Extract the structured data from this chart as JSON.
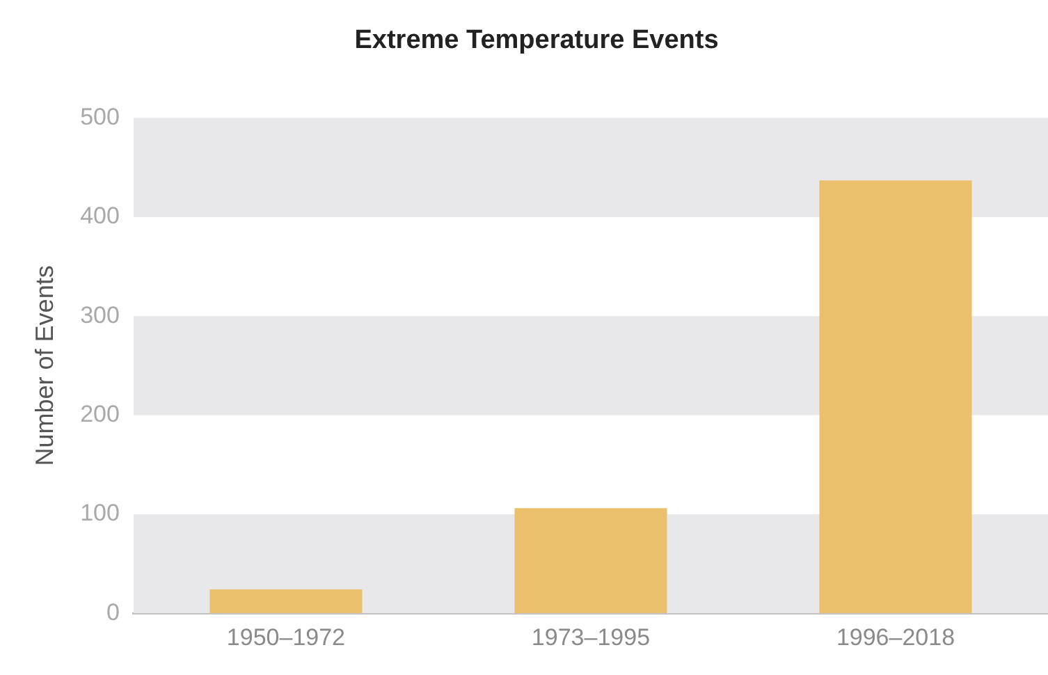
{
  "chart_data": {
    "type": "bar",
    "title": "Extreme Temperature Events",
    "ylabel": "Number of Events",
    "categories": [
      "1950–1972",
      "1973–1995",
      "1996–2018"
    ],
    "values": [
      24,
      106,
      437
    ],
    "color": "#eac06c",
    "ylim": [
      0,
      500
    ],
    "yticks": [
      0,
      100,
      200,
      300,
      400,
      500
    ],
    "grid": false,
    "legend": false,
    "bands": [
      {
        "axis": "y",
        "from": 0,
        "to": 100,
        "color": "#e8e8ea"
      },
      {
        "axis": "y",
        "from": 200,
        "to": 300,
        "color": "#e8e8ea"
      },
      {
        "axis": "y",
        "from": 400,
        "to": 500,
        "color": "#e8e8ea"
      }
    ]
  }
}
